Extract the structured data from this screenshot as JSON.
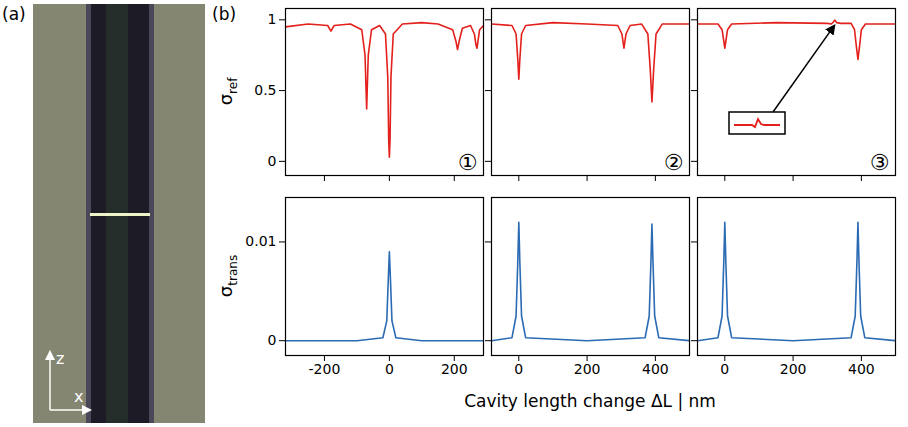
{
  "panel_labels": {
    "a": "(a)",
    "b": "(b)"
  },
  "photo": {
    "axis_labels": {
      "vertical": "z",
      "horizontal": "x"
    }
  },
  "xlabel": "Cavity length change ΔL | nm",
  "chart_data": [
    {
      "type": "line",
      "panel": "①",
      "ylabel": {
        "symbol": "σ",
        "subscript": "ref"
      },
      "color": "#e3201b",
      "xlim": [
        -320,
        290
      ],
      "xticks": [
        -200,
        0,
        200
      ],
      "ylim": [
        -0.1,
        1.08
      ],
      "yticks": [
        0,
        0.5,
        1
      ],
      "tick_labels": "y",
      "x": [
        -320,
        -250,
        -190,
        -180,
        -170,
        -120,
        -85,
        -75,
        -70,
        -65,
        -55,
        -30,
        -12,
        -5,
        -2,
        0,
        2,
        5,
        12,
        40,
        100,
        150,
        195,
        205,
        210,
        215,
        225,
        250,
        262,
        267,
        270,
        273,
        278,
        290
      ],
      "values": [
        0.95,
        0.97,
        0.96,
        0.92,
        0.96,
        0.97,
        0.93,
        0.75,
        0.37,
        0.75,
        0.93,
        0.96,
        0.9,
        0.6,
        0.15,
        0.03,
        0.15,
        0.6,
        0.9,
        0.97,
        0.98,
        0.97,
        0.93,
        0.85,
        0.79,
        0.85,
        0.94,
        0.96,
        0.9,
        0.82,
        0.8,
        0.85,
        0.93,
        0.96
      ]
    },
    {
      "type": "line",
      "panel": "②",
      "color": "#e3201b",
      "xlim": [
        -80,
        500
      ],
      "xticks": [
        0,
        200,
        400
      ],
      "ylim": [
        -0.1,
        1.08
      ],
      "yticks": [
        0,
        0.5,
        1
      ],
      "tick_labels": false,
      "x": [
        -80,
        -20,
        -8,
        -3,
        0,
        3,
        8,
        20,
        100,
        200,
        290,
        302,
        308,
        314,
        326,
        360,
        378,
        385,
        390,
        395,
        402,
        420,
        500
      ],
      "values": [
        0.97,
        0.96,
        0.9,
        0.72,
        0.58,
        0.72,
        0.9,
        0.96,
        0.98,
        0.97,
        0.96,
        0.9,
        0.8,
        0.9,
        0.96,
        0.97,
        0.9,
        0.65,
        0.42,
        0.65,
        0.9,
        0.97,
        0.97
      ]
    },
    {
      "type": "line",
      "panel": "③",
      "color": "#e3201b",
      "xlim": [
        -80,
        500
      ],
      "xticks": [
        0,
        200,
        400
      ],
      "ylim": [
        -0.1,
        1.08
      ],
      "yticks": [
        0,
        0.5,
        1
      ],
      "tick_labels": false,
      "inset_at": {
        "x": 322,
        "y": 0.998
      },
      "x": [
        -80,
        -20,
        -8,
        -3,
        0,
        3,
        8,
        20,
        150,
        300,
        312,
        318,
        322,
        328,
        340,
        370,
        380,
        385,
        390,
        395,
        400,
        412,
        500
      ],
      "values": [
        0.97,
        0.97,
        0.93,
        0.85,
        0.8,
        0.85,
        0.93,
        0.97,
        0.98,
        0.975,
        0.97,
        0.985,
        0.998,
        0.98,
        0.975,
        0.975,
        0.93,
        0.82,
        0.72,
        0.82,
        0.93,
        0.97,
        0.97
      ]
    },
    {
      "type": "line",
      "ylabel": {
        "symbol": "σ",
        "subscript": "trans"
      },
      "color": "#2a6bb3",
      "xlim": [
        -320,
        290
      ],
      "xticks": [
        -200,
        0,
        200
      ],
      "ylim": [
        -0.0015,
        0.0145
      ],
      "yticks": [
        0,
        0.01
      ],
      "x": [
        -320,
        -100,
        -20,
        -8,
        -3,
        0,
        3,
        8,
        20,
        100,
        290
      ],
      "values": [
        0,
        0,
        0.0003,
        0.002,
        0.0065,
        0.009,
        0.0065,
        0.002,
        0.0003,
        0,
        0
      ]
    },
    {
      "type": "line",
      "color": "#2a6bb3",
      "xlim": [
        -80,
        500
      ],
      "xticks": [
        0,
        200,
        400
      ],
      "ylim": [
        -0.0015,
        0.0145
      ],
      "yticks": [
        0,
        0.01
      ],
      "tick_labels": "x",
      "x": [
        -80,
        -20,
        -8,
        -3,
        0,
        3,
        8,
        20,
        200,
        370,
        382,
        387,
        390,
        393,
        398,
        410,
        500
      ],
      "values": [
        0,
        0.0003,
        0.0025,
        0.008,
        0.012,
        0.008,
        0.0025,
        0.0003,
        0,
        0.0003,
        0.0025,
        0.008,
        0.0118,
        0.008,
        0.0025,
        0.0003,
        0
      ]
    },
    {
      "type": "line",
      "color": "#2a6bb3",
      "xlim": [
        -80,
        500
      ],
      "xticks": [
        0,
        200,
        400
      ],
      "ylim": [
        -0.0015,
        0.0145
      ],
      "yticks": [
        0,
        0.01
      ],
      "tick_labels": "x",
      "x": [
        -80,
        -20,
        -8,
        -3,
        0,
        3,
        8,
        20,
        200,
        370,
        382,
        387,
        390,
        393,
        398,
        410,
        500
      ],
      "values": [
        0,
        0.0003,
        0.0025,
        0.008,
        0.012,
        0.008,
        0.0025,
        0.0003,
        0,
        0.0003,
        0.0025,
        0.008,
        0.012,
        0.008,
        0.0025,
        0.0003,
        0
      ]
    }
  ]
}
